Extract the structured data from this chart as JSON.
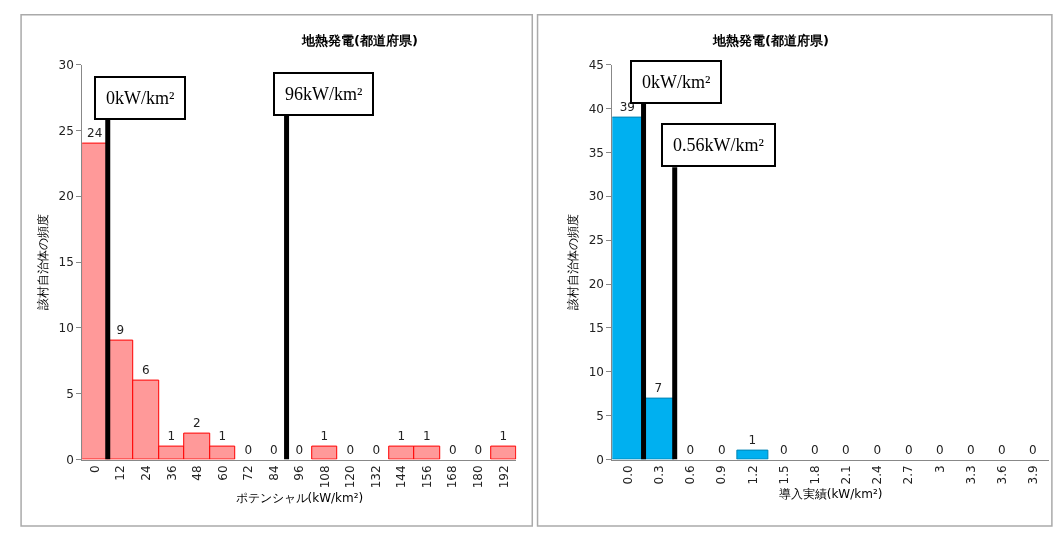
{
  "chart_data": [
    {
      "type": "bar",
      "title": "地熱発電(都道府県)",
      "xlabel": "ポテンシャル(kW/km²)",
      "ylabel": "該村自治体の頻度",
      "x": [
        0,
        12,
        24,
        36,
        48,
        60,
        72,
        84,
        96,
        108,
        120,
        132,
        144,
        156,
        168,
        180,
        192
      ],
      "values": [
        24,
        9,
        6,
        1,
        2,
        1,
        0,
        0,
        0,
        1,
        0,
        0,
        1,
        1,
        0,
        0,
        1
      ],
      "color": "#ff9999",
      "xlim": [
        -6,
        198
      ],
      "xticks": [
        0,
        12,
        24,
        36,
        48,
        60,
        72,
        84,
        96,
        108,
        120,
        132,
        144,
        156,
        168,
        180,
        192
      ],
      "ylim": [
        0,
        30
      ],
      "yticks": [
        0,
        5,
        10,
        15,
        20,
        25,
        30
      ],
      "data_labels": true,
      "ref_lines": [
        {
          "axis": "x",
          "value": 6,
          "label": "0kW/km²",
          "color": "#000000"
        },
        {
          "axis": "x",
          "value": 90,
          "label": "96kW/km²",
          "color": "#000000"
        }
      ]
    },
    {
      "type": "bar",
      "title": "地熱発電(都道府県)",
      "xlabel": "導入実績(kW/km²)",
      "ylabel": "該村自治体の頻度",
      "x": [
        0,
        0.3,
        0.6,
        0.9,
        1.2,
        1.5,
        1.8,
        2.1,
        2.4,
        2.7,
        3,
        3.3,
        3.6,
        3.9
      ],
      "values": [
        39,
        7,
        0,
        0,
        1,
        0,
        0,
        0,
        0,
        0,
        0,
        0,
        0,
        0
      ],
      "color": "#00b0f0",
      "xlim": [
        -0.15,
        4.05
      ],
      "xticks": [
        {
          "value": 0,
          "label": "0.0"
        },
        0.3,
        0.6,
        0.9,
        1.2,
        1.5,
        1.8,
        2.1,
        2.4,
        2.7,
        3,
        3.3,
        3.6,
        3.9
      ],
      "ylim": [
        0,
        45
      ],
      "yticks": [
        0,
        5,
        10,
        15,
        20,
        25,
        30,
        35,
        40,
        45
      ],
      "data_labels": true,
      "ref_lines": [
        {
          "axis": "x",
          "value": 0.15,
          "label": "0kW/km²",
          "color": "#000000"
        },
        {
          "axis": "x",
          "value": 0.45,
          "label": "0.56kW/km²",
          "color": "#000000"
        }
      ]
    }
  ]
}
